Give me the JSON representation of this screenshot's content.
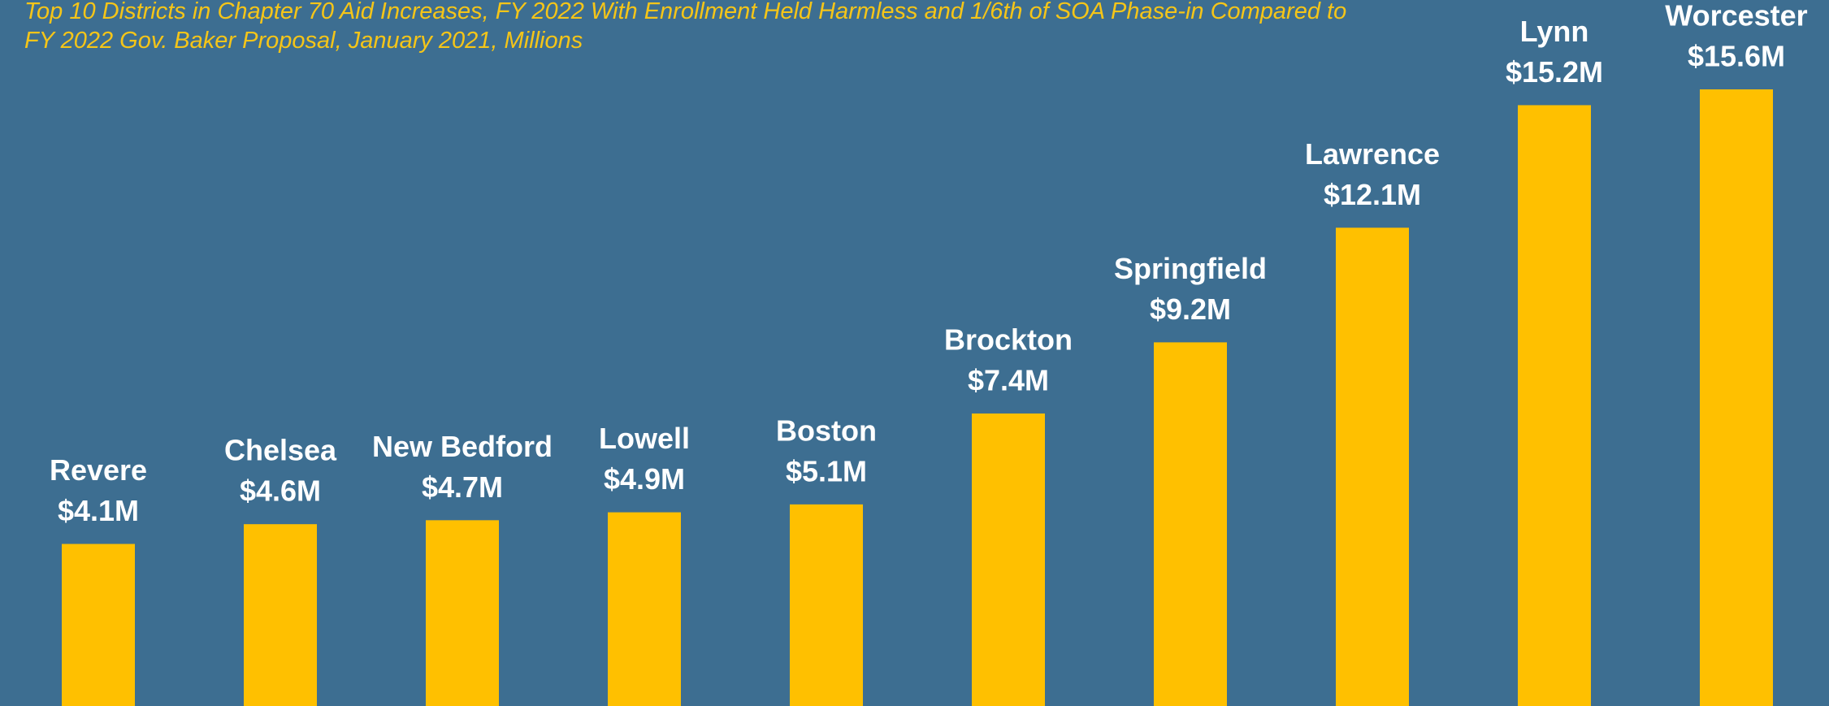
{
  "chart_data": {
    "type": "bar",
    "title": "Top 10 Districts in Chapter 70 Aid Increases, FY 2022 With Enrollment Held Harmless and 1/6th of SOA Phase-in Compared to FY 2022 Gov. Baker Proposal, January 2021, Millions",
    "categories": [
      "Revere",
      "Chelsea",
      "New Bedford",
      "Lowell",
      "Boston",
      "Brockton",
      "Springfield",
      "Lawrence",
      "Lynn",
      "Worcester"
    ],
    "values": [
      4.1,
      4.6,
      4.7,
      4.9,
      5.1,
      7.4,
      9.2,
      12.1,
      15.2,
      15.6
    ],
    "value_labels": [
      "$4.1M",
      "$4.6M",
      "$4.7M",
      "$4.9M",
      "$5.1M",
      "$7.4M",
      "$9.2M",
      "$12.1M",
      "$15.2M",
      "$15.6M"
    ],
    "color": "#ffc000"
  }
}
